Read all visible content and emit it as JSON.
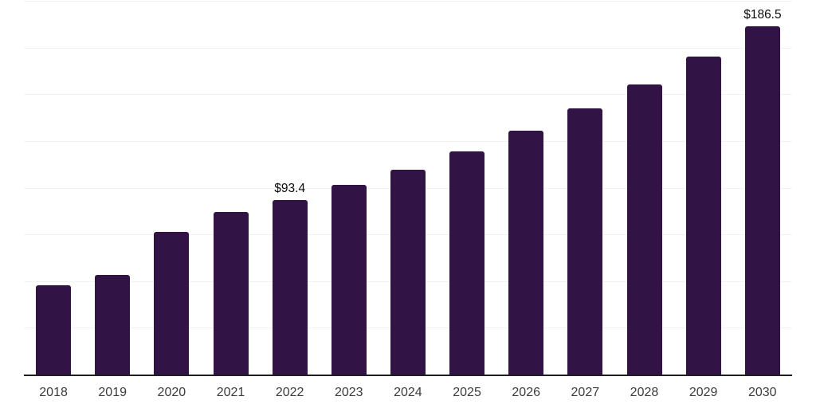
{
  "chart_data": {
    "type": "bar",
    "title": "",
    "xlabel": "",
    "ylabel": "",
    "categories": [
      "2018",
      "2019",
      "2020",
      "2021",
      "2022",
      "2023",
      "2024",
      "2025",
      "2026",
      "2027",
      "2028",
      "2029",
      "2030"
    ],
    "values": [
      47.8,
      53.1,
      76.2,
      87.2,
      93.4,
      101.4,
      109.8,
      119.6,
      130.4,
      142.5,
      155.3,
      170.1,
      186.5
    ],
    "point_labels": [
      "",
      "",
      "",
      "",
      "$93.4",
      "",
      "",
      "",
      "",
      "",
      "",
      "",
      "$186.5"
    ],
    "ylim": [
      0,
      200
    ],
    "gridline_step": 25,
    "grid": "horizontal-only",
    "legend": "none",
    "y_axis_ticks_visible": false,
    "bar_color": "#321345",
    "gridline_color": "#f2f2f4",
    "axis_line_color": "#1f1f1f",
    "tick_label_color": "#3c3c3c",
    "value_label_color": "#0b0b0b"
  }
}
